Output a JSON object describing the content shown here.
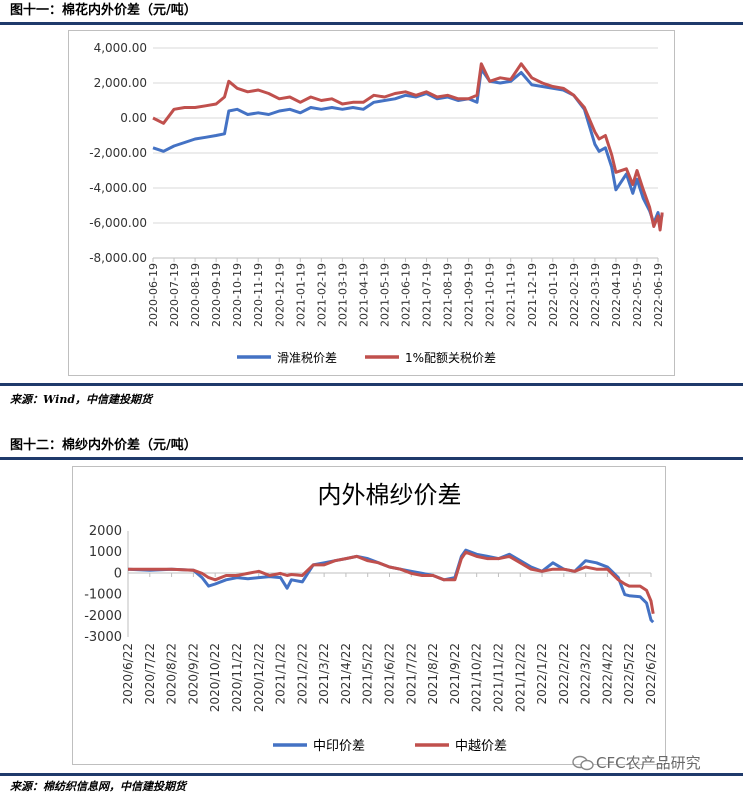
{
  "figure1": {
    "title": "图十一：棉花内外价差（元/吨）",
    "source": "来源：Wind，中信建投期货",
    "chart_data": {
      "type": "line",
      "y_ticks": [
        "4,000.00",
        "2,000.00",
        "0.00",
        "-2,000.00",
        "-4,000.00",
        "-6,000.00",
        "-8,000.00"
      ],
      "ylim": [
        -8000,
        4000
      ],
      "x_ticks": [
        "2020-06-19",
        "2020-07-19",
        "2020-08-19",
        "2020-09-19",
        "2020-10-19",
        "2020-11-19",
        "2020-12-19",
        "2021-01-19",
        "2021-02-19",
        "2021-03-19",
        "2021-04-19",
        "2021-05-19",
        "2021-06-19",
        "2021-07-19",
        "2021-08-19",
        "2021-09-19",
        "2021-10-19",
        "2021-11-19",
        "2021-12-19",
        "2022-01-19",
        "2022-02-19",
        "2022-03-19",
        "2022-04-19",
        "2022-05-19",
        "2022-06-19"
      ],
      "grid": true,
      "legend": "bottom",
      "series": [
        {
          "name": "滑准税价差",
          "color": "#4472c4",
          "x": [
            0,
            0.5,
            1,
            1.5,
            2,
            2.5,
            3,
            3.4,
            3.6,
            4,
            4.5,
            5,
            5.5,
            6,
            6.5,
            7,
            7.5,
            8,
            8.5,
            9,
            9.5,
            10,
            10.5,
            11,
            11.5,
            12,
            12.5,
            13,
            13.5,
            14,
            14.5,
            15,
            15.4,
            15.6,
            16,
            16.5,
            17,
            17.5,
            18,
            18.5,
            19,
            19.5,
            20,
            20.5,
            21,
            21.2,
            21.5,
            21.8,
            22,
            22.5,
            22.8,
            23,
            23.3,
            23.6,
            23.8,
            24,
            24.1,
            24.2
          ],
          "y": [
            -1700,
            -1900,
            -1600,
            -1400,
            -1200,
            -1100,
            -1000,
            -900,
            400,
            500,
            200,
            300,
            200,
            400,
            500,
            300,
            600,
            500,
            600,
            500,
            600,
            500,
            900,
            1000,
            1100,
            1300,
            1200,
            1400,
            1100,
            1200,
            1000,
            1100,
            900,
            2800,
            2100,
            2000,
            2100,
            2600,
            1900,
            1800,
            1700,
            1600,
            1300,
            500,
            -1500,
            -1900,
            -1700,
            -2800,
            -4100,
            -3200,
            -4300,
            -3500,
            -4600,
            -5300,
            -6000,
            -5400,
            -6000,
            -5500
          ]
        },
        {
          "name": "1%配额关税价差",
          "color": "#c0504d",
          "x": [
            0,
            0.5,
            1,
            1.5,
            2,
            2.5,
            3,
            3.4,
            3.6,
            4,
            4.5,
            5,
            5.5,
            6,
            6.5,
            7,
            7.5,
            8,
            8.5,
            9,
            9.5,
            10,
            10.5,
            11,
            11.5,
            12,
            12.5,
            13,
            13.5,
            14,
            14.5,
            15,
            15.4,
            15.6,
            16,
            16.5,
            17,
            17.5,
            18,
            18.5,
            19,
            19.5,
            20,
            20.5,
            21,
            21.2,
            21.5,
            21.8,
            22,
            22.5,
            22.8,
            23,
            23.3,
            23.6,
            23.8,
            24,
            24.1,
            24.2
          ],
          "y": [
            0,
            -300,
            500,
            600,
            600,
            700,
            800,
            1200,
            2100,
            1700,
            1500,
            1600,
            1400,
            1100,
            1200,
            900,
            1200,
            1000,
            1100,
            800,
            900,
            900,
            1300,
            1200,
            1400,
            1500,
            1300,
            1500,
            1200,
            1300,
            1100,
            1100,
            1300,
            3100,
            2100,
            2300,
            2200,
            3100,
            2300,
            2000,
            1800,
            1700,
            1300,
            600,
            -800,
            -1200,
            -1000,
            -2100,
            -3100,
            -2900,
            -3800,
            -3000,
            -4100,
            -5100,
            -6200,
            -5600,
            -6400,
            -5400
          ]
        }
      ]
    }
  },
  "figure2": {
    "title": "图十二：棉纱内外价差（元/吨）",
    "source": "来源：棉纺织信息网，中信建投期货",
    "watermark": "CFC农产品研究",
    "chart_data": {
      "type": "line",
      "title": "内外棉纱价差",
      "y_ticks": [
        "2000",
        "1000",
        "0",
        "-1000",
        "-2000",
        "-3000"
      ],
      "ylim": [
        -3000,
        2000
      ],
      "x_ticks": [
        "2020/6/22",
        "2020/7/22",
        "2020/8/22",
        "2020/9/22",
        "2020/10/22",
        "2020/11/22",
        "2020/12/22",
        "2021/1/22",
        "2021/2/22",
        "2021/3/22",
        "2021/4/22",
        "2021/5/22",
        "2021/6/22",
        "2021/7/22",
        "2021/8/22",
        "2021/9/22",
        "2021/10/22",
        "2021/11/22",
        "2021/12/22",
        "2022/1/22",
        "2022/2/22",
        "2022/3/22",
        "2022/4/22",
        "2022/5/22",
        "2022/6/22"
      ],
      "grid": false,
      "legend": "bottom",
      "series": [
        {
          "name": "中印价差",
          "color": "#4472c4",
          "x": [
            0,
            1,
            2,
            3,
            3.4,
            3.7,
            4,
            4.5,
            5,
            5.5,
            6,
            6.5,
            7,
            7.3,
            7.5,
            8,
            8.5,
            9,
            9.5,
            10,
            10.5,
            11,
            11.5,
            12,
            12.5,
            13,
            13.5,
            14,
            14.5,
            15,
            15.3,
            15.5,
            16,
            16.5,
            17,
            17.5,
            18,
            18.5,
            19,
            19.5,
            20,
            20.5,
            21,
            21.5,
            22,
            22.5,
            22.8,
            23,
            23.5,
            23.8,
            24,
            24.1
          ],
          "y": [
            200,
            150,
            200,
            150,
            -200,
            -600,
            -500,
            -300,
            -200,
            -250,
            -200,
            -150,
            -200,
            -700,
            -300,
            -400,
            400,
            500,
            600,
            700,
            800,
            700,
            500,
            300,
            200,
            100,
            0,
            -100,
            -300,
            -200,
            800,
            1100,
            900,
            800,
            700,
            900,
            600,
            300,
            100,
            500,
            200,
            100,
            600,
            500,
            300,
            -200,
            -1000,
            -1050,
            -1100,
            -1400,
            -2200,
            -2300
          ]
        },
        {
          "name": "中越价差",
          "color": "#c0504d",
          "x": [
            0,
            1,
            2,
            3,
            3.4,
            3.7,
            4,
            4.5,
            5,
            5.5,
            6,
            6.5,
            7,
            7.3,
            7.5,
            8,
            8.5,
            9,
            9.5,
            10,
            10.5,
            11,
            11.5,
            12,
            12.5,
            13,
            13.5,
            14,
            14.5,
            15,
            15.3,
            15.5,
            16,
            16.5,
            17,
            17.5,
            18,
            18.5,
            19,
            19.5,
            20,
            20.5,
            21,
            21.5,
            22,
            22.5,
            22.8,
            23,
            23.5,
            23.8,
            24,
            24.1
          ],
          "y": [
            200,
            200,
            200,
            150,
            0,
            -200,
            -300,
            -100,
            -100,
            0,
            100,
            -100,
            0,
            -100,
            -50,
            -100,
            400,
            400,
            600,
            700,
            800,
            600,
            500,
            300,
            200,
            0,
            -100,
            -100,
            -300,
            -300,
            700,
            1000,
            800,
            700,
            700,
            800,
            500,
            200,
            100,
            200,
            200,
            100,
            300,
            200,
            200,
            -300,
            -500,
            -600,
            -600,
            -800,
            -1300,
            -1900
          ]
        }
      ]
    }
  }
}
